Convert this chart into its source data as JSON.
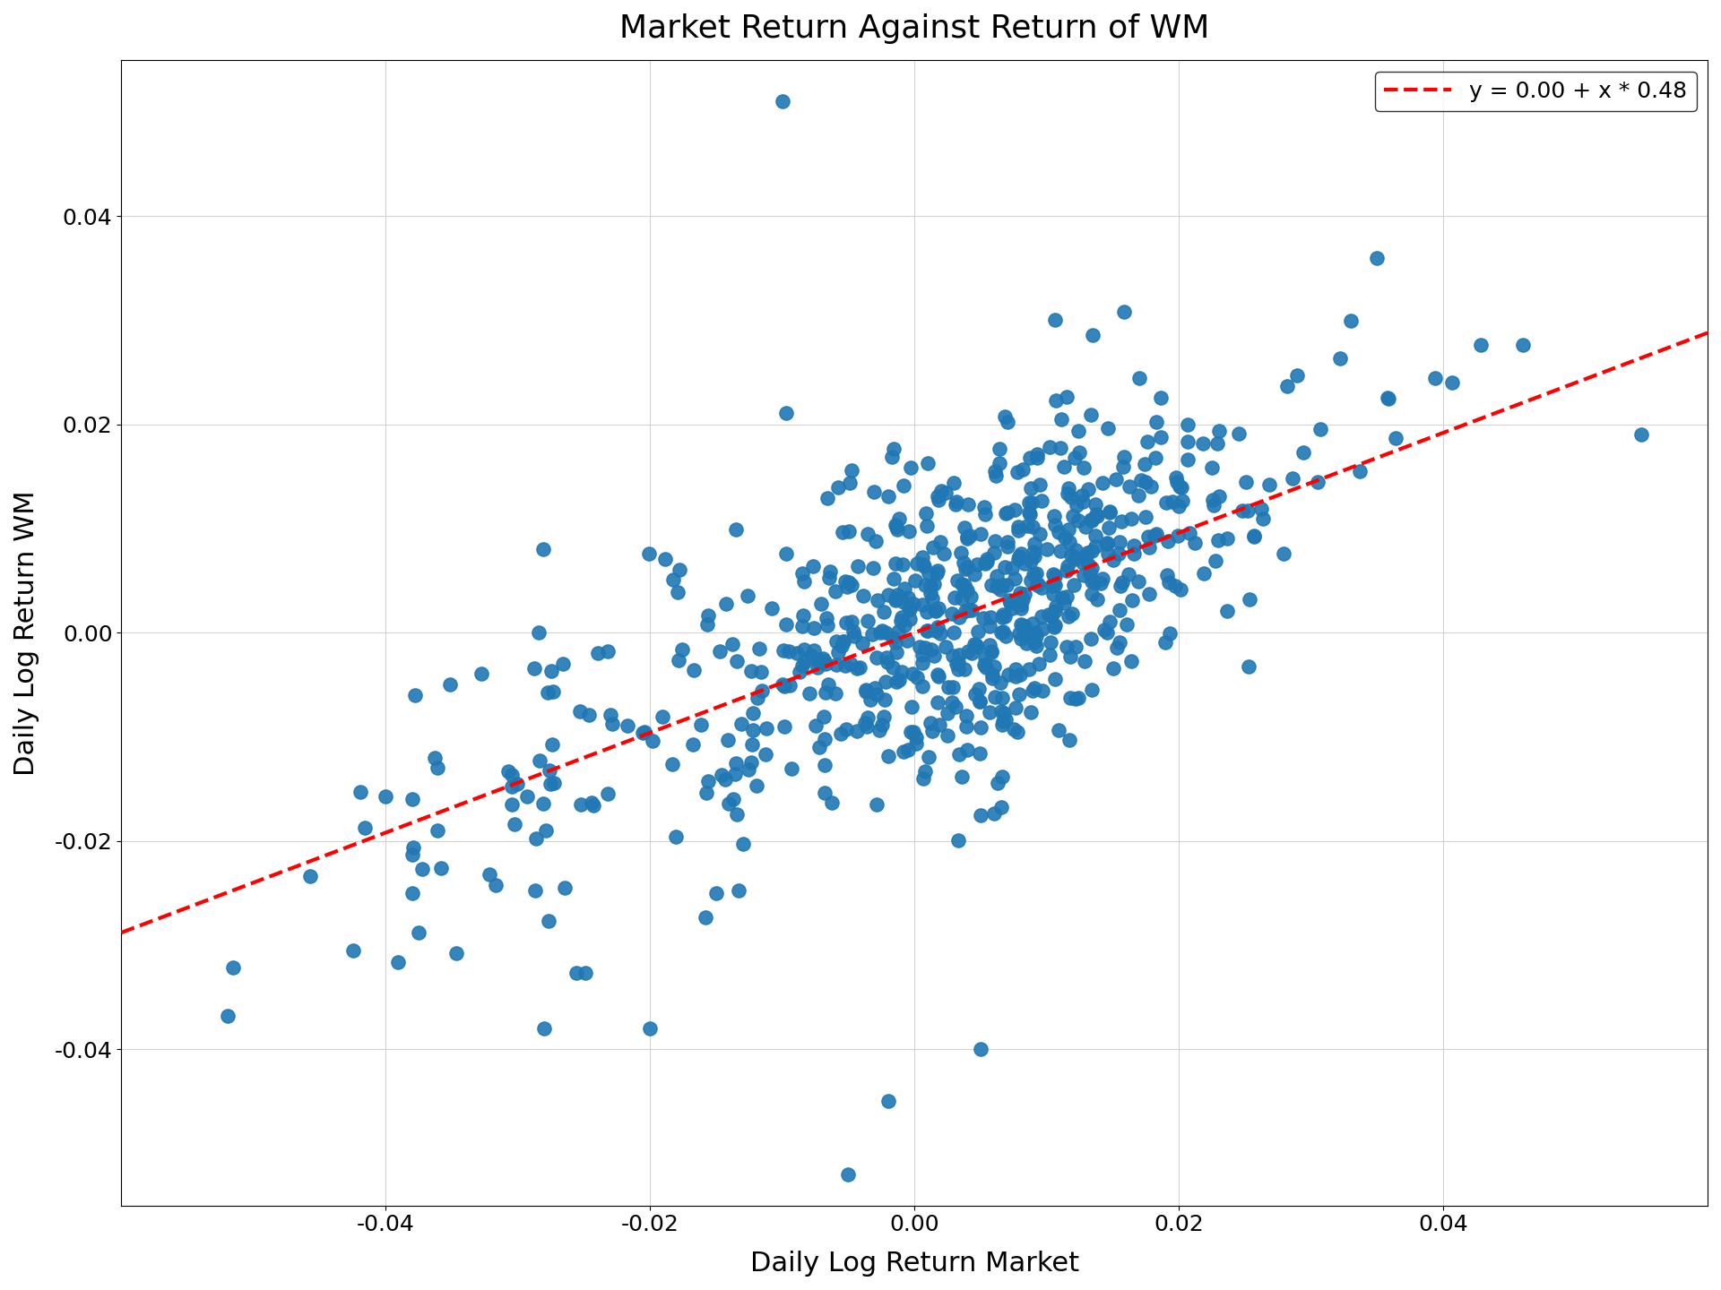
{
  "title": "Market Return Against Return of WM",
  "xlabel": "Daily Log Return Market",
  "ylabel": "Daily Log Return WM",
  "legend_label": "y = 0.00 + x * 0.48",
  "intercept": 0.0,
  "slope": 0.48,
  "scatter_color": "#1f77b4",
  "line_color": "red",
  "line_style": "--",
  "xlim": [
    -0.06,
    0.06
  ],
  "ylim": [
    -0.055,
    0.055
  ],
  "grid": true,
  "title_fontsize": 26,
  "label_fontsize": 22,
  "legend_fontsize": 18,
  "tick_fontsize": 18,
  "dot_size": 120,
  "random_seed": 42,
  "n_points": 700
}
